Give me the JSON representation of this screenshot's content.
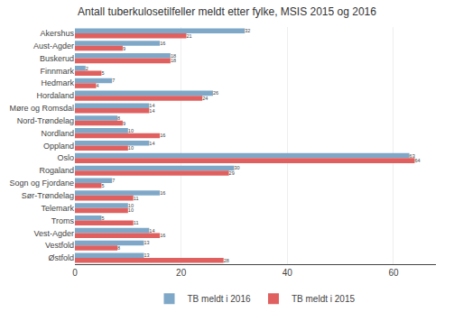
{
  "chart_data": {
    "type": "bar",
    "orientation": "horizontal",
    "title": "Antall tuberkulosetilfeller meldt etter fylke, MSIS 2015 og 2016",
    "categories": [
      "Akershus",
      "Aust-Agder",
      "Buskerud",
      "Finnmark",
      "Hedmark",
      "Hordaland",
      "Møre og Romsdal",
      "Nord-Trøndelag",
      "Nordland",
      "Oppland",
      "Oslo",
      "Rogaland",
      "Sogn og Fjordane",
      "Sør-Trøndelag",
      "Telemark",
      "Troms",
      "Vest-Agder",
      "Vestfold",
      "Østfold"
    ],
    "series": [
      {
        "name": "TB meldt i 2016",
        "color": "#7fa8c8",
        "values": [
          32,
          16,
          18,
          2,
          7,
          26,
          14,
          8,
          10,
          14,
          63,
          30,
          7,
          16,
          10,
          5,
          14,
          13,
          13
        ]
      },
      {
        "name": "TB meldt i 2015",
        "color": "#e06060",
        "values": [
          21,
          9,
          18,
          5,
          4,
          24,
          14,
          9,
          16,
          10,
          64,
          29,
          5,
          11,
          10,
          11,
          16,
          8,
          28
        ]
      }
    ],
    "xlim": [
      0,
      68
    ],
    "xticks": [
      0,
      20,
      40,
      60
    ],
    "grid": true,
    "legend": "bottom",
    "data_labels": true
  }
}
